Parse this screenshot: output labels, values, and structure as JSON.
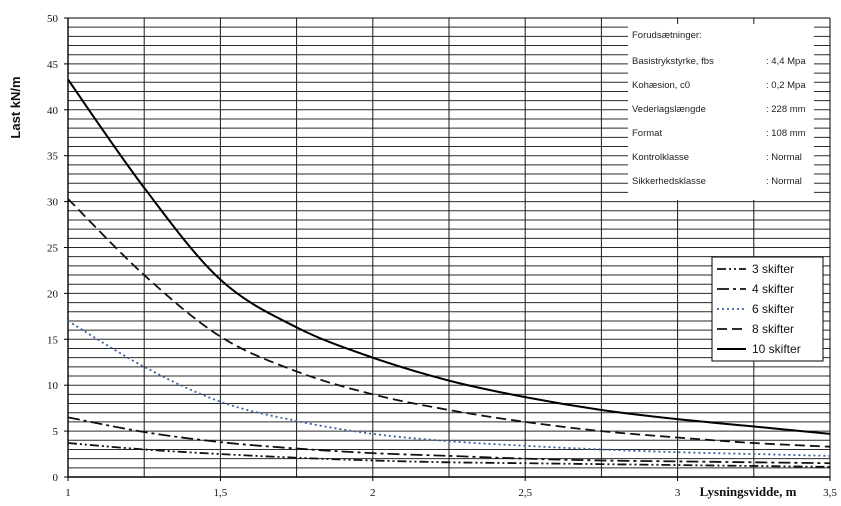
{
  "chart_data": {
    "type": "line",
    "ylabel": "Last kN/m",
    "xlabel": "Lysningsvidde, m",
    "xlim": [
      1,
      3.5
    ],
    "ylim": [
      0,
      50
    ],
    "x_ticks": [
      "1",
      "1,5",
      "2",
      "2,5",
      "3",
      "3,5"
    ],
    "y_ticks": [
      "0",
      "5",
      "10",
      "15",
      "20",
      "25",
      "30",
      "35",
      "40",
      "45",
      "50"
    ],
    "grid": true,
    "legend_position": "right",
    "series": [
      {
        "name": "3 skifter",
        "x": [
          1.0,
          1.25,
          1.5,
          1.75,
          2.0,
          2.25,
          2.5,
          2.75,
          3.0,
          3.25,
          3.5
        ],
        "values": [
          3.7,
          3.0,
          2.5,
          2.1,
          1.8,
          1.6,
          1.5,
          1.4,
          1.3,
          1.2,
          1.1
        ]
      },
      {
        "name": "4 skifter",
        "x": [
          1.0,
          1.25,
          1.5,
          1.75,
          2.0,
          2.25,
          2.5,
          2.75,
          3.0,
          3.25,
          3.5
        ],
        "values": [
          6.5,
          4.9,
          3.8,
          3.1,
          2.6,
          2.3,
          2.0,
          1.8,
          1.7,
          1.6,
          1.5
        ]
      },
      {
        "name": "6 skifter",
        "x": [
          1.0,
          1.25,
          1.5,
          1.75,
          2.0,
          2.25,
          2.5,
          2.75,
          3.0,
          3.25,
          3.5
        ],
        "values": [
          17.0,
          12.0,
          8.2,
          6.1,
          4.7,
          3.9,
          3.4,
          3.0,
          2.7,
          2.5,
          2.3
        ]
      },
      {
        "name": "8 skifter",
        "x": [
          1.0,
          1.25,
          1.5,
          1.75,
          2.0,
          2.25,
          2.5,
          2.75,
          3.0,
          3.25,
          3.5
        ],
        "values": [
          30.3,
          22.0,
          15.3,
          11.5,
          9.0,
          7.3,
          6.0,
          5.0,
          4.3,
          3.7,
          3.3
        ]
      },
      {
        "name": "10 skifter",
        "x": [
          1.0,
          1.25,
          1.5,
          1.75,
          2.0,
          2.25,
          2.5,
          2.75,
          3.0,
          3.25,
          3.5
        ],
        "values": [
          43.3,
          31.5,
          21.5,
          16.3,
          13.0,
          10.5,
          8.7,
          7.3,
          6.3,
          5.5,
          4.7
        ]
      }
    ],
    "series_styles": [
      {
        "color": "#111111",
        "dash": "9 3 2 3 2 3"
      },
      {
        "color": "#111111",
        "dash": "12 4 3 4"
      },
      {
        "color": "#3a5f9e",
        "dash": "2 3"
      },
      {
        "color": "#111111",
        "dash": "10 5"
      },
      {
        "color": "#000000",
        "dash": ""
      }
    ],
    "annotation": {
      "title": "Forudsætninger:",
      "rows": [
        {
          "label": "Basistrykstyrke, fbs",
          "value": ": 4,4 Mpa"
        },
        {
          "label": "Kohæsion, c0",
          "value": ": 0,2 Mpa"
        },
        {
          "label": "Vederlagslængde",
          "value": ": 228 mm"
        },
        {
          "label": "Format",
          "value": ": 108 mm"
        },
        {
          "label": "Kontrolklasse",
          "value": ": Normal"
        },
        {
          "label": "Sikkerhedsklasse",
          "value": ": Normal"
        }
      ]
    }
  }
}
